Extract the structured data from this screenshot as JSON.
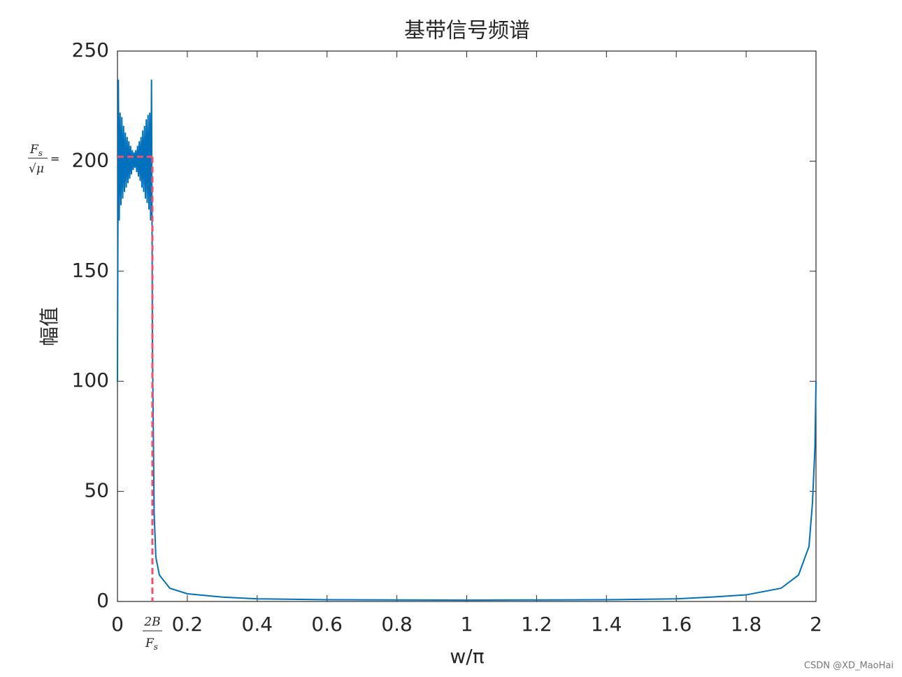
{
  "chart_data": {
    "type": "line",
    "title": "基带信号频谱",
    "x_label": "w/π",
    "y_label": "幅值",
    "x": [
      0,
      0.0025,
      0.005,
      0.0075,
      0.01,
      0.0125,
      0.015,
      0.0175,
      0.02,
      0.0225,
      0.025,
      0.0275,
      0.03,
      0.0325,
      0.035,
      0.0375,
      0.04,
      0.0425,
      0.045,
      0.0475,
      0.05,
      0.0525,
      0.055,
      0.0575,
      0.06,
      0.0625,
      0.065,
      0.0675,
      0.07,
      0.0725,
      0.075,
      0.0775,
      0.08,
      0.0825,
      0.085,
      0.0875,
      0.09,
      0.0925,
      0.095,
      0.0975,
      0.1,
      0.105,
      0.11,
      0.12,
      0.15,
      0.2,
      0.3,
      0.4,
      0.6,
      1,
      1.4,
      1.6,
      1.7,
      1.8,
      1.9,
      1.95,
      1.98,
      1.99,
      1.997,
      2
    ],
    "values": [
      100,
      237,
      173,
      222,
      180,
      220,
      183,
      216,
      186,
      213,
      188,
      211,
      190,
      209,
      192,
      207,
      194,
      205,
      196,
      204,
      197,
      205,
      195,
      207,
      193,
      209,
      191,
      211,
      188,
      214,
      186,
      216,
      183,
      219,
      181,
      221,
      178,
      222,
      173,
      237,
      120,
      40,
      20,
      12,
      6,
      3.5,
      2,
      1.2,
      0.8,
      0.6,
      0.8,
      1.2,
      2,
      3,
      6,
      12,
      25,
      45,
      70,
      100
    ],
    "color": "#0072bd",
    "xlim": [
      0,
      2
    ],
    "xticks": [
      0,
      0.2,
      0.4,
      0.6,
      0.8,
      1,
      1.2,
      1.4,
      1.6,
      1.8,
      2
    ],
    "ylim": [
      0,
      250
    ],
    "yticks": [
      0,
      50,
      100,
      150,
      200,
      250
    ],
    "reference": {
      "x": 0.1,
      "y": 202,
      "color": "#f0506e"
    },
    "y_annotation": {
      "numerator": "F",
      "numerator_sub": "s",
      "denominator": "√μ",
      "suffix": "="
    },
    "x_annotation": {
      "numerator": "2B",
      "denominator": "F",
      "denominator_sub": "s"
    },
    "watermark": "CSDN @XD_MaoHai"
  }
}
